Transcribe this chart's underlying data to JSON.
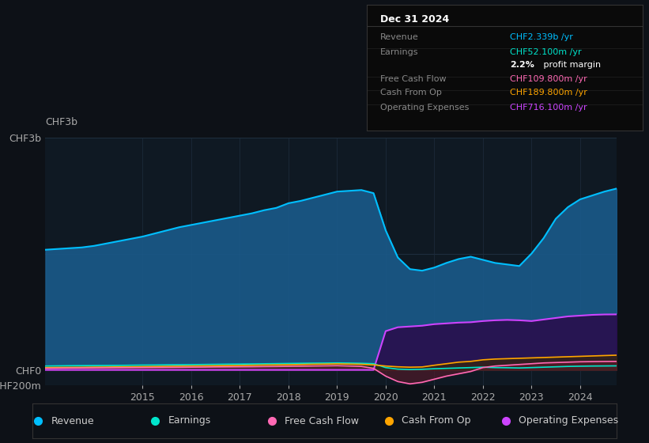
{
  "bg_color": "#0d1117",
  "plot_bg_color": "#0f1923",
  "grid_color": "#1e2d3d",
  "years": [
    2013.0,
    2013.25,
    2013.5,
    2013.75,
    2014.0,
    2014.25,
    2014.5,
    2014.75,
    2015.0,
    2015.25,
    2015.5,
    2015.75,
    2016.0,
    2016.25,
    2016.5,
    2016.75,
    2017.0,
    2017.25,
    2017.5,
    2017.75,
    2018.0,
    2018.25,
    2018.5,
    2018.75,
    2019.0,
    2019.25,
    2019.5,
    2019.75,
    2020.0,
    2020.25,
    2020.5,
    2020.75,
    2021.0,
    2021.25,
    2021.5,
    2021.75,
    2022.0,
    2022.25,
    2022.5,
    2022.75,
    2023.0,
    2023.25,
    2023.5,
    2023.75,
    2024.0,
    2024.25,
    2024.5,
    2024.75
  ],
  "revenue": [
    1550,
    1560,
    1570,
    1580,
    1600,
    1630,
    1660,
    1690,
    1720,
    1760,
    1800,
    1840,
    1870,
    1900,
    1930,
    1960,
    1990,
    2020,
    2060,
    2090,
    2150,
    2180,
    2220,
    2260,
    2300,
    2310,
    2320,
    2280,
    1800,
    1450,
    1300,
    1280,
    1320,
    1380,
    1430,
    1460,
    1420,
    1380,
    1360,
    1340,
    1500,
    1700,
    1950,
    2100,
    2200,
    2250,
    2300,
    2339
  ],
  "earnings": [
    50,
    52,
    54,
    55,
    56,
    57,
    58,
    60,
    62,
    63,
    65,
    66,
    68,
    70,
    72,
    74,
    75,
    77,
    79,
    81,
    83,
    85,
    87,
    88,
    90,
    88,
    85,
    80,
    30,
    10,
    5,
    8,
    15,
    20,
    25,
    30,
    35,
    30,
    28,
    25,
    30,
    35,
    40,
    45,
    48,
    50,
    51,
    52.1
  ],
  "free_cash_flow": [
    20,
    22,
    24,
    25,
    26,
    27,
    28,
    29,
    30,
    31,
    32,
    33,
    35,
    36,
    38,
    39,
    40,
    41,
    43,
    44,
    46,
    48,
    50,
    52,
    54,
    50,
    45,
    20,
    -80,
    -150,
    -180,
    -160,
    -120,
    -80,
    -50,
    -20,
    30,
    50,
    60,
    70,
    80,
    90,
    95,
    100,
    105,
    107,
    109,
    109.8
  ],
  "cash_from_op": [
    30,
    32,
    33,
    34,
    36,
    37,
    39,
    40,
    42,
    44,
    46,
    48,
    50,
    52,
    54,
    56,
    58,
    60,
    63,
    65,
    67,
    70,
    73,
    75,
    78,
    75,
    72,
    65,
    50,
    40,
    35,
    38,
    60,
    80,
    100,
    110,
    130,
    140,
    145,
    150,
    155,
    160,
    165,
    170,
    175,
    180,
    185,
    189.8
  ],
  "operating_expenses": [
    0,
    0,
    0,
    0,
    0,
    0,
    0,
    0,
    0,
    0,
    0,
    0,
    0,
    0,
    0,
    0,
    0,
    0,
    0,
    0,
    0,
    0,
    0,
    0,
    0,
    0,
    0,
    0,
    500,
    550,
    560,
    570,
    590,
    600,
    610,
    615,
    630,
    640,
    645,
    640,
    630,
    650,
    670,
    690,
    700,
    710,
    715,
    716.1
  ],
  "revenue_color": "#00bfff",
  "revenue_fill": "#1a5a8a",
  "earnings_color": "#00e5cc",
  "earnings_fill": "#004040",
  "free_cash_flow_color": "#ff69b4",
  "free_cash_flow_fill": "#5a1a2a",
  "cash_from_op_color": "#ffa500",
  "cash_from_op_fill": "#3a2800",
  "operating_expenses_color": "#cc44ff",
  "operating_expenses_fill": "#2a0a4a",
  "ylim_top": 3000,
  "ylim_bottom": -200,
  "yticks_labels": [
    "CHF3b",
    "",
    "CHF0",
    "-CHF200m"
  ],
  "yticks_values": [
    3000,
    1500,
    0,
    -200
  ],
  "xticks": [
    2015,
    2016,
    2017,
    2018,
    2019,
    2020,
    2021,
    2022,
    2023,
    2024
  ],
  "info_box": {
    "title": "Dec 31 2024",
    "rows": [
      {
        "label": "Revenue",
        "value": "CHF2.339b /yr",
        "value_color": "#00bfff"
      },
      {
        "label": "Earnings",
        "value": "CHF52.100m /yr",
        "value_color": "#00e5cc"
      },
      {
        "label": "",
        "value": "2.2% profit margin",
        "value_color": "#ffffff",
        "bold_part": "2.2%"
      },
      {
        "label": "Free Cash Flow",
        "value": "CHF109.800m /yr",
        "value_color": "#ff69b4"
      },
      {
        "label": "Cash From Op",
        "value": "CHF189.800m /yr",
        "value_color": "#ffa500"
      },
      {
        "label": "Operating Expenses",
        "value": "CHF716.100m /yr",
        "value_color": "#cc44ff"
      }
    ]
  },
  "legend": [
    {
      "label": "Revenue",
      "color": "#00bfff"
    },
    {
      "label": "Earnings",
      "color": "#00e5cc"
    },
    {
      "label": "Free Cash Flow",
      "color": "#ff69b4"
    },
    {
      "label": "Cash From Op",
      "color": "#ffa500"
    },
    {
      "label": "Operating Expenses",
      "color": "#cc44ff"
    }
  ]
}
